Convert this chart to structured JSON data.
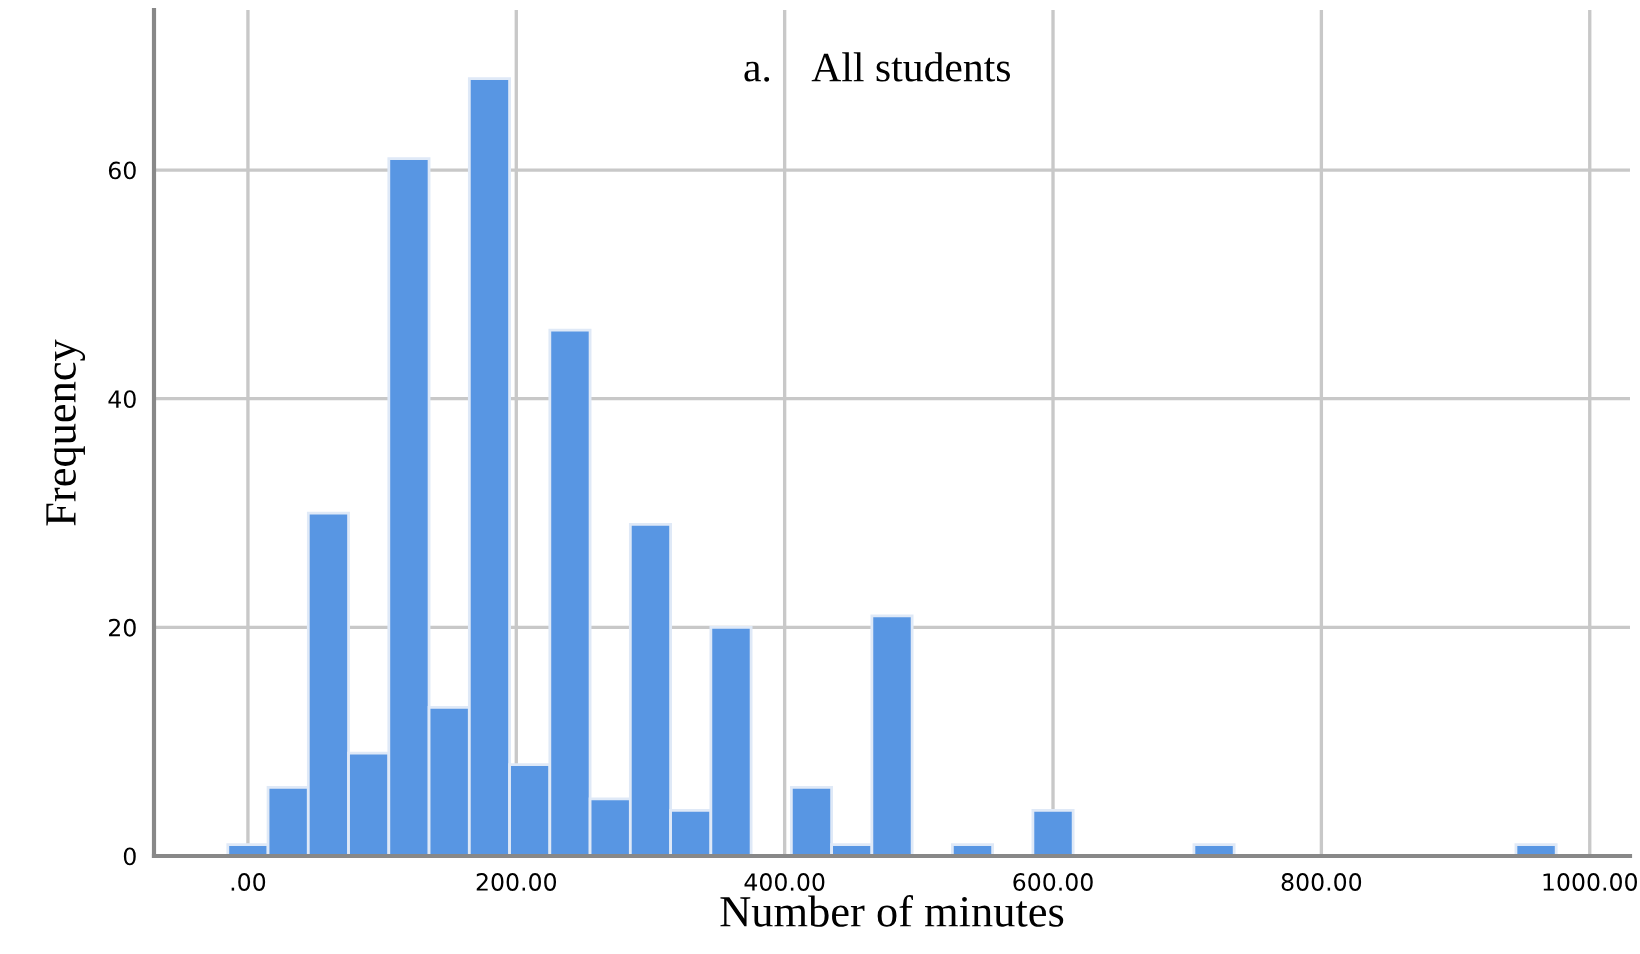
{
  "chart_data": {
    "type": "histogram",
    "title": "a.    All students",
    "xlabel": "Number of minutes",
    "ylabel": "Frequency",
    "bins": [
      -15,
      15,
      45,
      75,
      105,
      135,
      165,
      195,
      225,
      255,
      285,
      315,
      345,
      375,
      405,
      435,
      465,
      495,
      525,
      555,
      585,
      615,
      645,
      675,
      705,
      735,
      765,
      795,
      825,
      855,
      885,
      915,
      945,
      975
    ],
    "values": [
      1,
      6,
      30,
      9,
      61,
      13,
      68,
      8,
      46,
      5,
      29,
      4,
      20,
      0,
      6,
      1,
      21,
      0,
      1,
      0,
      4,
      0,
      0,
      0,
      1,
      0,
      0,
      0,
      0,
      0,
      0,
      0,
      1
    ],
    "color": "#5896e3",
    "xlim": [
      -70,
      1030
    ],
    "ylim": [
      0,
      74
    ],
    "xticks": [
      {
        "value": 0,
        "label": ".00"
      },
      {
        "value": 200,
        "label": "200.00"
      },
      {
        "value": 400,
        "label": "400.00"
      },
      {
        "value": 600,
        "label": "600.00"
      },
      {
        "value": 800,
        "label": "800.00"
      },
      {
        "value": 1000,
        "label": "1000.00"
      }
    ],
    "yticks": [
      0,
      20,
      40,
      60
    ],
    "grid": true,
    "legend": false
  }
}
